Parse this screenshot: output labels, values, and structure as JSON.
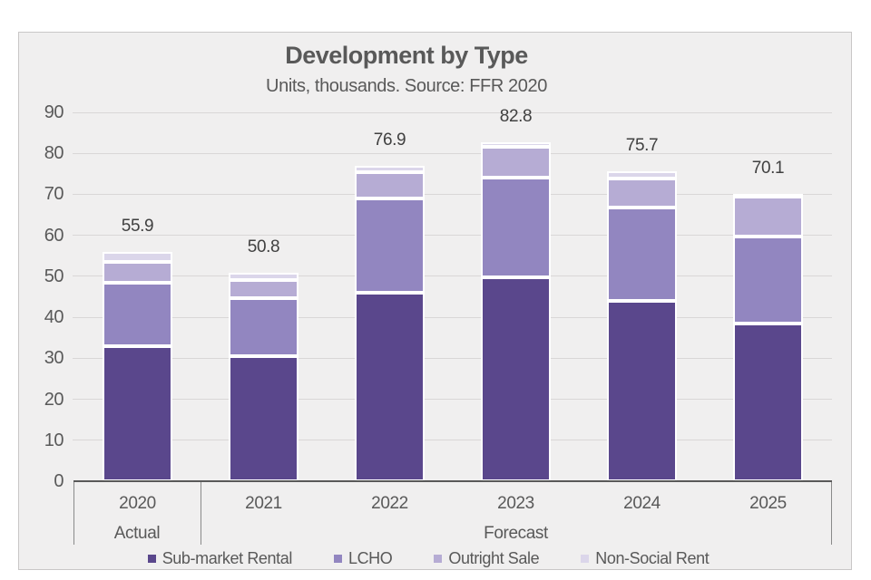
{
  "title": "Development by Type",
  "subtitle": "Units, thousands. Source: FFR 2020",
  "colors": {
    "sub_market_rental": "#5a478c",
    "lcho": "#9286c0",
    "outright_sale": "#b6acd4",
    "non_social_rent": "#dbd6ea",
    "panel_background": "#f0efef",
    "gridline": "#d9d7d7",
    "axis_line": "#595959",
    "table_border": "#8a8a8a",
    "text": "#595959",
    "data_label_text": "#404040"
  },
  "chart_data": {
    "type": "bar",
    "stacked": true,
    "title": "Development by Type",
    "subtitle": "Units, thousands. Source: FFR 2020",
    "categories": [
      "2020",
      "2021",
      "2022",
      "2023",
      "2024",
      "2025"
    ],
    "series": [
      {
        "name": "Sub-market Rental",
        "color": "#5a478c",
        "values": [
          32.9,
          30.5,
          45.9,
          49.8,
          43.9,
          38.4
        ]
      },
      {
        "name": "LCHO",
        "color": "#9286c0",
        "values": [
          15.6,
          14.2,
          23.2,
          24.3,
          22.8,
          21.3
        ]
      },
      {
        "name": "Outright Sale",
        "color": "#b6acd4",
        "values": [
          5.0,
          4.5,
          6.3,
          7.4,
          7.2,
          9.8
        ]
      },
      {
        "name": "Non-Social Rent",
        "color": "#dbd6ea",
        "values": [
          2.4,
          1.6,
          1.5,
          1.3,
          1.8,
          0.6
        ]
      }
    ],
    "totals": [
      "55.9",
      "50.8",
      "76.9",
      "82.8",
      "75.7",
      "70.1"
    ],
    "ylim": [
      0,
      90
    ],
    "ytick_step": 10,
    "yticks": [
      "0",
      "10",
      "20",
      "30",
      "40",
      "50",
      "60",
      "70",
      "80",
      "90"
    ],
    "grid": true,
    "legend_position": "bottom",
    "axis_groups": [
      {
        "label": "Actual",
        "span": [
          0,
          0
        ]
      },
      {
        "label": "Forecast",
        "span": [
          1,
          5
        ]
      }
    ]
  }
}
